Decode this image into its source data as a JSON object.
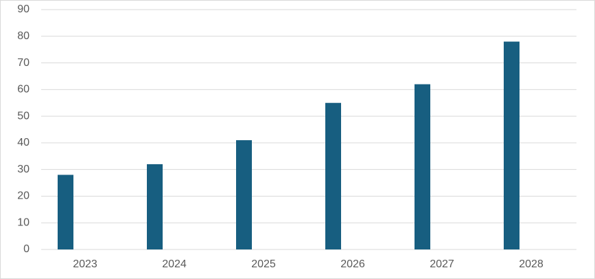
{
  "chart_data": {
    "type": "bar",
    "categories": [
      "2023",
      "2024",
      "2025",
      "2026",
      "2027",
      "2028"
    ],
    "values": [
      28,
      32,
      41,
      55,
      62,
      78
    ],
    "color": "#175e80",
    "ylim": [
      0,
      90
    ],
    "yticks": [
      0,
      10,
      20,
      30,
      40,
      50,
      60,
      70,
      80,
      90
    ],
    "grid": true
  }
}
